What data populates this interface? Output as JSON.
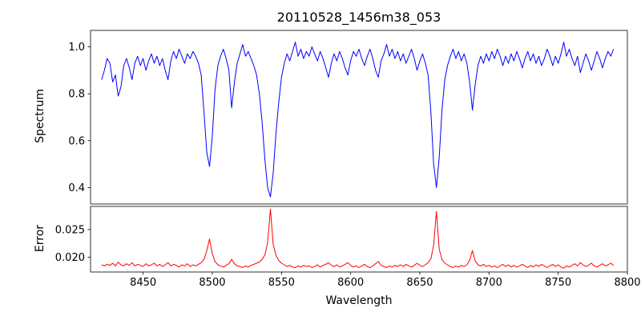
{
  "figure": {
    "title": "20110528_1456m38_053"
  },
  "chart_data": {
    "type": "line",
    "title": "20110528_1456m38_053",
    "xlabel": "Wavelength",
    "grid": false,
    "legend": "none",
    "x_start": 8420,
    "x_step": 2,
    "n_points": 186,
    "xlim": [
      8412,
      8800
    ],
    "xticks": [
      8450,
      8500,
      8550,
      8600,
      8650,
      8700,
      8750,
      8800
    ],
    "xtick_labels": [
      "8450",
      "8500",
      "8550",
      "8600",
      "8650",
      "8700",
      "8750",
      "8800"
    ],
    "absorption_line_centers": [
      8498,
      8542,
      8662,
      8688
    ],
    "panels": [
      {
        "name": "spectrum",
        "ylabel": "Spectrum",
        "color": "#0000ff",
        "ylim": [
          0.33,
          1.07
        ],
        "yticks": [
          0.4,
          0.6,
          0.8,
          1.0
        ],
        "ytick_labels": [
          "0.4",
          "0.6",
          "0.8",
          "1.0"
        ],
        "values": [
          0.86,
          0.9,
          0.95,
          0.93,
          0.85,
          0.88,
          0.79,
          0.83,
          0.92,
          0.95,
          0.91,
          0.86,
          0.93,
          0.96,
          0.92,
          0.95,
          0.9,
          0.94,
          0.97,
          0.93,
          0.96,
          0.92,
          0.95,
          0.9,
          0.86,
          0.94,
          0.98,
          0.95,
          0.99,
          0.96,
          0.93,
          0.97,
          0.95,
          0.98,
          0.96,
          0.93,
          0.88,
          0.72,
          0.55,
          0.49,
          0.62,
          0.82,
          0.92,
          0.96,
          0.99,
          0.95,
          0.9,
          0.74,
          0.85,
          0.93,
          0.97,
          1.01,
          0.96,
          0.98,
          0.95,
          0.92,
          0.88,
          0.8,
          0.68,
          0.52,
          0.4,
          0.36,
          0.46,
          0.63,
          0.76,
          0.87,
          0.93,
          0.97,
          0.94,
          0.98,
          1.02,
          0.96,
          0.99,
          0.95,
          0.98,
          0.96,
          1.0,
          0.97,
          0.94,
          0.98,
          0.95,
          0.91,
          0.87,
          0.93,
          0.97,
          0.94,
          0.98,
          0.95,
          0.91,
          0.88,
          0.94,
          0.98,
          0.96,
          0.99,
          0.95,
          0.92,
          0.96,
          0.99,
          0.95,
          0.9,
          0.87,
          0.94,
          0.97,
          1.01,
          0.96,
          0.99,
          0.95,
          0.98,
          0.94,
          0.97,
          0.93,
          0.96,
          0.99,
          0.95,
          0.9,
          0.94,
          0.97,
          0.93,
          0.88,
          0.72,
          0.5,
          0.4,
          0.53,
          0.73,
          0.86,
          0.92,
          0.96,
          0.99,
          0.95,
          0.98,
          0.94,
          0.97,
          0.93,
          0.85,
          0.73,
          0.84,
          0.92,
          0.96,
          0.93,
          0.97,
          0.94,
          0.98,
          0.95,
          0.99,
          0.96,
          0.92,
          0.96,
          0.93,
          0.97,
          0.94,
          0.98,
          0.95,
          0.91,
          0.95,
          0.98,
          0.94,
          0.97,
          0.93,
          0.96,
          0.92,
          0.95,
          0.99,
          0.96,
          0.92,
          0.96,
          0.93,
          0.97,
          1.02,
          0.96,
          0.99,
          0.95,
          0.92,
          0.96,
          0.89,
          0.93,
          0.97,
          0.94,
          0.9,
          0.94,
          0.98,
          0.95,
          0.91,
          0.95,
          0.98,
          0.96,
          0.99
        ]
      },
      {
        "name": "error",
        "ylabel": "Error",
        "color": "#ff0000",
        "ylim": [
          0.0173,
          0.0292
        ],
        "yticks": [
          0.02,
          0.025
        ],
        "ytick_labels": [
          "0.020",
          "0.025"
        ],
        "values": [
          0.0186,
          0.0184,
          0.0187,
          0.0185,
          0.0189,
          0.0184,
          0.0191,
          0.0186,
          0.0184,
          0.0188,
          0.0185,
          0.019,
          0.0184,
          0.0187,
          0.0185,
          0.0183,
          0.0188,
          0.0184,
          0.0186,
          0.0189,
          0.0184,
          0.0187,
          0.0183,
          0.0186,
          0.019,
          0.0184,
          0.0187,
          0.0185,
          0.0182,
          0.0186,
          0.0184,
          0.0188,
          0.0183,
          0.0186,
          0.0184,
          0.0187,
          0.019,
          0.0196,
          0.0212,
          0.0233,
          0.0206,
          0.0192,
          0.0186,
          0.0184,
          0.0182,
          0.0185,
          0.0188,
          0.0196,
          0.0188,
          0.0184,
          0.0183,
          0.0181,
          0.0184,
          0.0182,
          0.0185,
          0.0187,
          0.0189,
          0.0191,
          0.0196,
          0.0204,
          0.0226,
          0.0287,
          0.0224,
          0.0203,
          0.0194,
          0.0189,
          0.0186,
          0.0183,
          0.0185,
          0.0182,
          0.0181,
          0.0184,
          0.0182,
          0.0185,
          0.0183,
          0.0184,
          0.0181,
          0.0183,
          0.0186,
          0.0182,
          0.0185,
          0.0187,
          0.019,
          0.0185,
          0.0183,
          0.0186,
          0.0182,
          0.0184,
          0.0187,
          0.019,
          0.0185,
          0.0182,
          0.0184,
          0.0181,
          0.0184,
          0.0187,
          0.0183,
          0.0181,
          0.0184,
          0.0188,
          0.0192,
          0.0185,
          0.0183,
          0.0181,
          0.0184,
          0.0182,
          0.0185,
          0.0183,
          0.0186,
          0.0183,
          0.0187,
          0.0184,
          0.0182,
          0.0185,
          0.0189,
          0.0185,
          0.0183,
          0.0186,
          0.019,
          0.0197,
          0.0222,
          0.0283,
          0.0214,
          0.0196,
          0.0189,
          0.0186,
          0.0183,
          0.0181,
          0.0184,
          0.0182,
          0.0185,
          0.0183,
          0.0186,
          0.0194,
          0.0212,
          0.0193,
          0.0186,
          0.0184,
          0.0187,
          0.0183,
          0.0185,
          0.0182,
          0.0184,
          0.0181,
          0.0184,
          0.0187,
          0.0183,
          0.0186,
          0.0182,
          0.0185,
          0.0182,
          0.0184,
          0.0187,
          0.0184,
          0.0181,
          0.0185,
          0.0182,
          0.0186,
          0.0183,
          0.0187,
          0.0184,
          0.0181,
          0.0184,
          0.0187,
          0.0183,
          0.0186,
          0.0182,
          0.018,
          0.0184,
          0.0182,
          0.0185,
          0.0188,
          0.0184,
          0.019,
          0.0186,
          0.0183,
          0.0185,
          0.0189,
          0.0184,
          0.0182,
          0.0185,
          0.0188,
          0.0184,
          0.0186,
          0.0189,
          0.0185
        ]
      }
    ]
  }
}
